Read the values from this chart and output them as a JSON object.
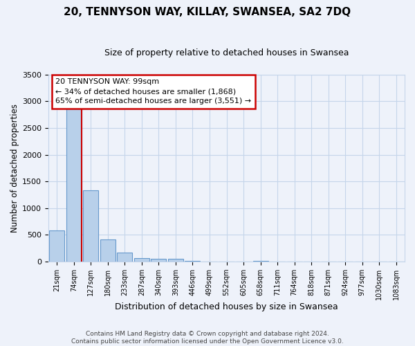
{
  "title": "20, TENNYSON WAY, KILLAY, SWANSEA, SA2 7DQ",
  "subtitle": "Size of property relative to detached houses in Swansea",
  "xlabel": "Distribution of detached houses by size in Swansea",
  "ylabel": "Number of detached properties",
  "bar_labels": [
    "21sqm",
    "74sqm",
    "127sqm",
    "180sqm",
    "233sqm",
    "287sqm",
    "340sqm",
    "393sqm",
    "446sqm",
    "499sqm",
    "552sqm",
    "605sqm",
    "658sqm",
    "711sqm",
    "764sqm",
    "818sqm",
    "871sqm",
    "924sqm",
    "977sqm",
    "1030sqm",
    "1083sqm"
  ],
  "bar_values": [
    575,
    2920,
    1330,
    415,
    170,
    65,
    50,
    45,
    5,
    0,
    0,
    0,
    5,
    0,
    0,
    0,
    0,
    0,
    0,
    0,
    0
  ],
  "bar_color": "#b8d0ea",
  "bar_edgecolor": "#6699cc",
  "vline_x_idx": 1,
  "vline_color": "#cc0000",
  "annotation_title": "20 TENNYSON WAY: 99sqm",
  "annotation_line1": "← 34% of detached houses are smaller (1,868)",
  "annotation_line2": "65% of semi-detached houses are larger (3,551) →",
  "annotation_box_color": "#ffffff",
  "annotation_box_edgecolor": "#cc0000",
  "ylim": [
    0,
    3500
  ],
  "yticks": [
    0,
    500,
    1000,
    1500,
    2000,
    2500,
    3000,
    3500
  ],
  "footer_line1": "Contains HM Land Registry data © Crown copyright and database right 2024.",
  "footer_line2": "Contains public sector information licensed under the Open Government Licence v3.0.",
  "bg_color": "#eef2fa",
  "grid_color": "#c5d5ea",
  "title_fontsize": 11,
  "subtitle_fontsize": 9,
  "ylabel_fontsize": 8.5,
  "xlabel_fontsize": 9
}
